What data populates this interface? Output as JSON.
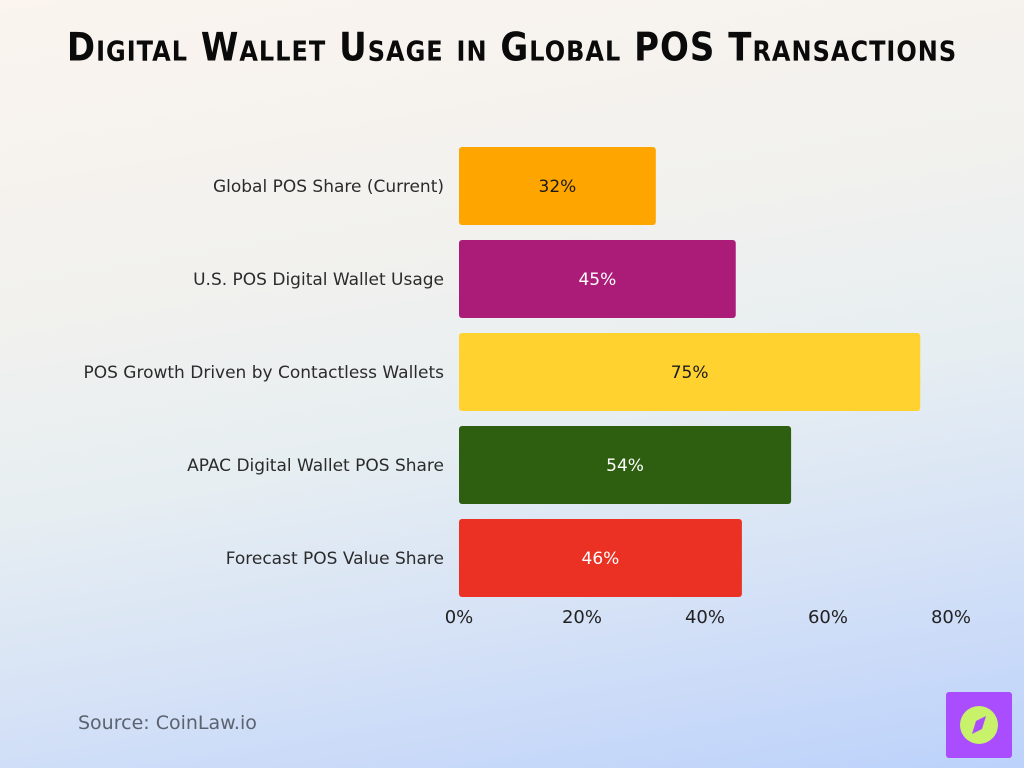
{
  "title": "Digital Wallet Usage in Global POS Transactions",
  "source": "Source: CoinLaw.io",
  "logo_icon": "compass-icon",
  "chart_data": {
    "type": "bar",
    "orientation": "horizontal",
    "title": "Digital Wallet Usage in Global POS Transactions",
    "categories": [
      "Global POS Share (Current)",
      "U.S. POS Digital Wallet Usage",
      "POS Growth Driven by Contactless Wallets",
      "APAC Digital Wallet POS Share",
      "Forecast POS Value Share"
    ],
    "values": [
      32,
      45,
      75,
      54,
      46
    ],
    "value_labels": [
      "32%",
      "45%",
      "75%",
      "54%",
      "46%"
    ],
    "colors": [
      "#ffa500",
      "#ab1c78",
      "#ffd230",
      "#2e5f11",
      "#ea3124"
    ],
    "label_colors": [
      "#1a1a1a",
      "#ffffff",
      "#1a1a1a",
      "#ffffff",
      "#ffffff"
    ],
    "xlim": [
      0,
      80
    ],
    "xticks": [
      0,
      20,
      40,
      60,
      80
    ],
    "xtick_labels": [
      "0%",
      "20%",
      "40%",
      "60%",
      "80%"
    ],
    "grid": false,
    "legend": "none"
  }
}
